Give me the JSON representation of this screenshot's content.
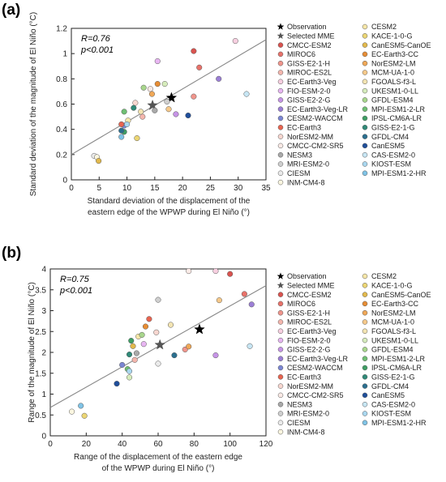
{
  "models": [
    {
      "name": "Observation",
      "color": "#000000",
      "marker": "star"
    },
    {
      "name": "Selected MME",
      "color": "#555555",
      "marker": "star"
    },
    {
      "name": "CMCC-ESM2",
      "color": "#d9534f",
      "marker": "circle"
    },
    {
      "name": "MIROC6",
      "color": "#e8726a",
      "marker": "circle"
    },
    {
      "name": "GISS-E2-1-H",
      "color": "#f0958c",
      "marker": "circle"
    },
    {
      "name": "MIROC-ES2L",
      "color": "#f4b6ad",
      "marker": "circle"
    },
    {
      "name": "EC-Earth3-Veg",
      "color": "#f7cfe0",
      "marker": "circle"
    },
    {
      "name": "FIO-ESM-2-0",
      "color": "#e8b6f2",
      "marker": "circle"
    },
    {
      "name": "GISS-E2-2-G",
      "color": "#c694e6",
      "marker": "circle"
    },
    {
      "name": "EC-Earth3-Veg-LR",
      "color": "#9c7fd6",
      "marker": "circle"
    },
    {
      "name": "CESM2-WACCM",
      "color": "#7b86d4",
      "marker": "circle"
    },
    {
      "name": "EC-Earth3",
      "color": "#e86450",
      "marker": "circle"
    },
    {
      "name": "NorESM2-MM",
      "color": "#f8d7d0",
      "marker": "circle"
    },
    {
      "name": "CMCC-CM2-SR5",
      "color": "#fbeae6",
      "marker": "circle"
    },
    {
      "name": "NESM3",
      "color": "#a9a9a9",
      "marker": "circle"
    },
    {
      "name": "MRI-ESM2-0",
      "color": "#cfcfcf",
      "marker": "circle"
    },
    {
      "name": "CIESM",
      "color": "#ebebeb",
      "marker": "circle"
    },
    {
      "name": "INM-CM4-8",
      "color": "#fbf6e0",
      "marker": "circle"
    },
    {
      "name": "CESM2",
      "color": "#f7e7a8",
      "marker": "circle"
    },
    {
      "name": "KACE-1-0-G",
      "color": "#ecd674",
      "marker": "circle"
    },
    {
      "name": "CanESM5-CanOE",
      "color": "#e2b94c",
      "marker": "circle"
    },
    {
      "name": "EC-Earth3-CC",
      "color": "#e78d34",
      "marker": "circle"
    },
    {
      "name": "NorESM2-LM",
      "color": "#f0a857",
      "marker": "circle"
    },
    {
      "name": "MCM-UA-1-0",
      "color": "#f6c98a",
      "marker": "circle"
    },
    {
      "name": "FGOALS-f3-L",
      "color": "#f3e4b2",
      "marker": "circle"
    },
    {
      "name": "UKESM1-0-LL",
      "color": "#d6ecbc",
      "marker": "circle"
    },
    {
      "name": "GFDL-ESM4",
      "color": "#a8d68c",
      "marker": "circle"
    },
    {
      "name": "MPI-ESM1-2-LR",
      "color": "#6fbf73",
      "marker": "circle"
    },
    {
      "name": "IPSL-CM6A-LR",
      "color": "#3e9e64",
      "marker": "circle"
    },
    {
      "name": "GISS-E2-1-G",
      "color": "#2f8a78",
      "marker": "circle"
    },
    {
      "name": "GFDL-CM4",
      "color": "#2b6f8f",
      "marker": "circle"
    },
    {
      "name": "CanESM5",
      "color": "#1f4e9a",
      "marker": "circle"
    },
    {
      "name": "CAS-ESM2-0",
      "color": "#c7e6f4",
      "marker": "circle"
    },
    {
      "name": "KIOST-ESM",
      "color": "#a9d7ef",
      "marker": "circle"
    },
    {
      "name": "MPI-ESM1-2-HR",
      "color": "#7fc3e6",
      "marker": "circle"
    }
  ],
  "chart_data": [
    {
      "type": "scatter",
      "panel_label": "(a)",
      "xlabel_line1": "Standard deviation of the displacement of the",
      "xlabel_line2": "eastern edge of the WPWP during El Niño (°)",
      "ylabel": "Standard deviation of the magnitude of El Niño (°C)",
      "stat_r": "R=0.76",
      "stat_p": "p<0.001",
      "xlim": [
        0,
        35
      ],
      "ylim": [
        0,
        1.2
      ],
      "xticks": [
        "0",
        "5",
        "10",
        "15",
        "20",
        "25",
        "30",
        "35"
      ],
      "xtick_values": [
        0,
        5,
        10,
        15,
        20,
        25,
        30,
        35
      ],
      "yticks": [
        "0",
        "0.2",
        "0.4",
        "0.6",
        "0.8",
        "1",
        "1.2"
      ],
      "ytick_values": [
        0,
        0.2,
        0.4,
        0.6,
        0.8,
        1.0,
        1.2
      ],
      "fit_line": {
        "x": [
          0,
          35
        ],
        "y": [
          0.2,
          1.11
        ]
      },
      "points": [
        {
          "model": "Observation",
          "x": 18.0,
          "y": 0.65
        },
        {
          "model": "Selected MME",
          "x": 14.6,
          "y": 0.59
        },
        {
          "model": "CMCC-ESM2",
          "x": 22.0,
          "y": 1.02
        },
        {
          "model": "MIROC6",
          "x": 23.0,
          "y": 0.89
        },
        {
          "model": "GISS-E2-1-H",
          "x": 22.0,
          "y": 0.66
        },
        {
          "model": "MIROC-ES2L",
          "x": 12.8,
          "y": 0.5
        },
        {
          "model": "EC-Earth3-Veg",
          "x": 29.5,
          "y": 1.1
        },
        {
          "model": "FIO-ESM-2-0",
          "x": 15.5,
          "y": 0.94
        },
        {
          "model": "GISS-E2-2-G",
          "x": 18.8,
          "y": 0.52
        },
        {
          "model": "EC-Earth3-Veg-LR",
          "x": 26.5,
          "y": 0.8
        },
        {
          "model": "CESM2-WACCM",
          "x": 9.5,
          "y": 0.43
        },
        {
          "model": "EC-Earth3",
          "x": 9.0,
          "y": 0.44
        },
        {
          "model": "NorESM2-MM",
          "x": 11.5,
          "y": 0.61
        },
        {
          "model": "CMCC-CM2-SR5",
          "x": 14.2,
          "y": 0.72
        },
        {
          "model": "NESM3",
          "x": 15.0,
          "y": 0.55
        },
        {
          "model": "MRI-ESM2-0",
          "x": 17.2,
          "y": 0.62
        },
        {
          "model": "CIESM",
          "x": 4.1,
          "y": 0.19
        },
        {
          "model": "INM-CM4-8",
          "x": 4.6,
          "y": 0.18
        },
        {
          "model": "CESM2",
          "x": 10.2,
          "y": 0.47
        },
        {
          "model": "KACE-1-0-G",
          "x": 11.8,
          "y": 0.33
        },
        {
          "model": "CanESM5-CanOE",
          "x": 4.9,
          "y": 0.15
        },
        {
          "model": "EC-Earth3-CC",
          "x": 15.5,
          "y": 0.76
        },
        {
          "model": "NorESM2-LM",
          "x": 14.5,
          "y": 0.68
        },
        {
          "model": "MCM-UA-1-0",
          "x": 17.5,
          "y": 0.56
        },
        {
          "model": "FGOALS-f3-L",
          "x": 12.5,
          "y": 0.54
        },
        {
          "model": "UKESM1-0-LL",
          "x": 16.8,
          "y": 0.76
        },
        {
          "model": "GFDL-ESM4",
          "x": 13.0,
          "y": 0.73
        },
        {
          "model": "MPI-ESM1-2-LR",
          "x": 9.5,
          "y": 0.54
        },
        {
          "model": "IPSL-CM6A-LR",
          "x": 9.5,
          "y": 0.38
        },
        {
          "model": "GISS-E2-1-G",
          "x": 11.2,
          "y": 0.57
        },
        {
          "model": "GFDL-CM4",
          "x": 9.0,
          "y": 0.39
        },
        {
          "model": "CanESM5",
          "x": 21.0,
          "y": 0.51
        },
        {
          "model": "CAS-ESM2-0",
          "x": 31.5,
          "y": 0.68
        },
        {
          "model": "KIOST-ESM",
          "x": 10.0,
          "y": 0.44
        },
        {
          "model": "MPI-ESM1-2-HR",
          "x": 9.0,
          "y": 0.34
        }
      ]
    },
    {
      "type": "scatter",
      "panel_label": "(b)",
      "xlabel_line1": "Range of the displacement of the eastern edge",
      "xlabel_line2": "of the WPWP during El Niño (°)",
      "ylabel": "Range of the magnitude of El Niño (°C)",
      "stat_r": "R=0.75",
      "stat_p": "p<0.001",
      "xlim": [
        0,
        120
      ],
      "ylim": [
        0,
        4
      ],
      "xticks": [
        "0",
        "20",
        "40",
        "60",
        "80",
        "100",
        "120"
      ],
      "xtick_values": [
        0,
        20,
        40,
        60,
        80,
        100,
        120
      ],
      "yticks": [
        "0",
        "0.5",
        "1",
        "1.5",
        "2",
        "2.5",
        "3",
        "3.5",
        "4"
      ],
      "ytick_values": [
        0,
        0.5,
        1.0,
        1.5,
        2.0,
        2.5,
        3.0,
        3.5,
        4.0
      ],
      "fit_line": {
        "x": [
          0,
          120
        ],
        "y": [
          0.68,
          3.6
        ]
      },
      "points": [
        {
          "model": "Observation",
          "x": 83,
          "y": 2.55
        },
        {
          "model": "Selected MME",
          "x": 61,
          "y": 2.18
        },
        {
          "model": "CMCC-ESM2",
          "x": 100,
          "y": 3.88
        },
        {
          "model": "MIROC6",
          "x": 108,
          "y": 3.4
        },
        {
          "model": "GISS-E2-1-H",
          "x": 75,
          "y": 2.07
        },
        {
          "model": "MIROC-ES2L",
          "x": 47,
          "y": 1.82
        },
        {
          "model": "EC-Earth3-Veg",
          "x": 92,
          "y": 3.95
        },
        {
          "model": "FIO-ESM-2-0",
          "x": 52,
          "y": 2.2
        },
        {
          "model": "GISS-E2-2-G",
          "x": 92,
          "y": 1.93
        },
        {
          "model": "EC-Earth3-Veg-LR",
          "x": 112,
          "y": 3.15
        },
        {
          "model": "CESM2-WACCM",
          "x": 40,
          "y": 1.7
        },
        {
          "model": "EC-Earth3",
          "x": 55,
          "y": 2.8
        },
        {
          "model": "NorESM2-MM",
          "x": 59,
          "y": 2.48
        },
        {
          "model": "CMCC-CM2-SR5",
          "x": 77,
          "y": 3.95
        },
        {
          "model": "NESM3",
          "x": 48,
          "y": 1.98
        },
        {
          "model": "MRI-ESM2-0",
          "x": 60,
          "y": 3.26
        },
        {
          "model": "CIESM",
          "x": 60,
          "y": 1.73
        },
        {
          "model": "INM-CM4-8",
          "x": 12,
          "y": 0.58
        },
        {
          "model": "CESM2",
          "x": 49,
          "y": 2.38
        },
        {
          "model": "KACE-1-0-G",
          "x": 19,
          "y": 0.48
        },
        {
          "model": "CanESM5-CanOE",
          "x": 46,
          "y": 2.15
        },
        {
          "model": "EC-Earth3-CC",
          "x": 53,
          "y": 2.62
        },
        {
          "model": "NorESM2-LM",
          "x": 77,
          "y": 2.14
        },
        {
          "model": "MCM-UA-1-0",
          "x": 94,
          "y": 3.25
        },
        {
          "model": "FGOALS-f3-L",
          "x": 67,
          "y": 2.66
        },
        {
          "model": "UKESM1-0-LL",
          "x": 44,
          "y": 1.4
        },
        {
          "model": "GFDL-ESM4",
          "x": 51,
          "y": 2.42
        },
        {
          "model": "MPI-ESM1-2-LR",
          "x": 43,
          "y": 1.6
        },
        {
          "model": "IPSL-CM6A-LR",
          "x": 45,
          "y": 2.28
        },
        {
          "model": "GISS-E2-1-G",
          "x": 44,
          "y": 1.95
        },
        {
          "model": "GFDL-CM4",
          "x": 69,
          "y": 1.93
        },
        {
          "model": "CanESM5",
          "x": 37,
          "y": 1.25
        },
        {
          "model": "CAS-ESM2-0",
          "x": 111,
          "y": 2.15
        },
        {
          "model": "KIOST-ESM",
          "x": 44,
          "y": 1.55
        },
        {
          "model": "MPI-ESM1-2-HR",
          "x": 17,
          "y": 0.72
        }
      ]
    }
  ]
}
